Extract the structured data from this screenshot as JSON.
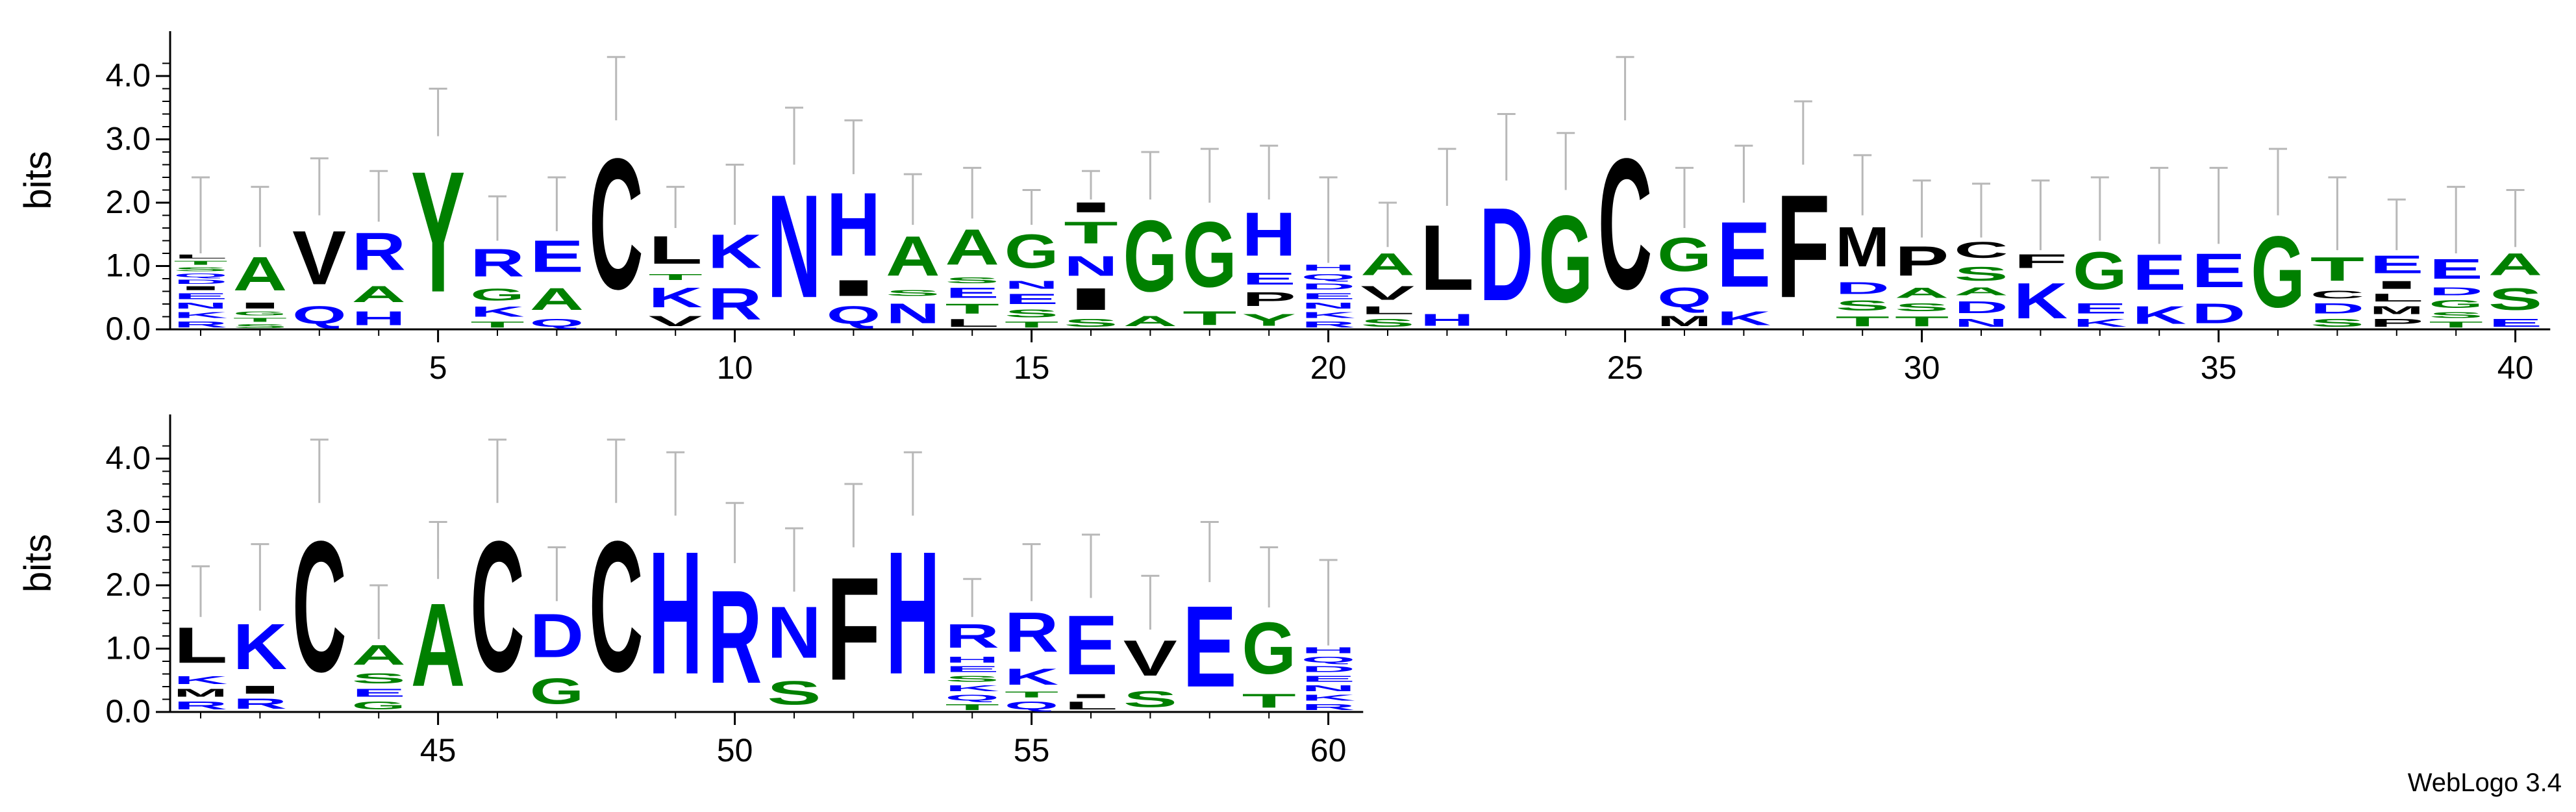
{
  "chart_data": {
    "type": "sequence-logo",
    "ylabel": "bits",
    "ylim": [
      0,
      4.32
    ],
    "yticks": [
      "0.0",
      "1.0",
      "2.0",
      "3.0",
      "4.0"
    ],
    "credit": "WebLogo 3.4",
    "colors": {
      "B": "#0000ff",
      "G": "#008000",
      "K": "#000000"
    },
    "color_classes": {
      "B": "DEHKNQR",
      "G": "AGSTY",
      "K": "CFILMPVW"
    },
    "panels": [
      {
        "start": 1,
        "end": 40,
        "xticks": [
          5,
          10,
          15,
          20,
          25,
          30,
          35,
          40
        ]
      },
      {
        "start": 41,
        "end": 60,
        "xticks": [
          45,
          50,
          55,
          60
        ]
      }
    ],
    "positions": [
      {
        "pos": 1,
        "err": 2.4,
        "stack": [
          [
            "R",
            0.15
          ],
          [
            "K",
            0.15
          ],
          [
            "N",
            0.15
          ],
          [
            "E",
            0.15
          ],
          [
            "I",
            0.1
          ],
          [
            "D",
            0.1
          ],
          [
            "Q",
            0.1
          ],
          [
            "S",
            0.1
          ],
          [
            "T",
            0.1
          ],
          [
            "L",
            0.1
          ]
        ]
      },
      {
        "pos": 2,
        "err": 2.25,
        "stack": [
          [
            "S",
            0.1
          ],
          [
            "T",
            0.1
          ],
          [
            "G",
            0.1
          ],
          [
            "I",
            0.15
          ],
          [
            "A",
            0.85
          ]
        ]
      },
      {
        "pos": 3,
        "err": 2.7,
        "stack": [
          [
            "Q",
            0.45
          ],
          [
            "V",
            1.35
          ]
        ]
      },
      {
        "pos": 4,
        "err": 2.5,
        "stack": [
          [
            "H",
            0.35
          ],
          [
            "A",
            0.4
          ],
          [
            "R",
            0.95
          ]
        ]
      },
      {
        "pos": 5,
        "err": 3.8,
        "stack": [
          [
            "Y",
            3.05
          ]
        ]
      },
      {
        "pos": 6,
        "err": 2.1,
        "stack": [
          [
            "T",
            0.15
          ],
          [
            "K",
            0.25
          ],
          [
            "G",
            0.3
          ],
          [
            "R",
            0.7
          ]
        ]
      },
      {
        "pos": 7,
        "err": 2.4,
        "stack": [
          [
            "Q",
            0.2
          ],
          [
            "A",
            0.55
          ],
          [
            "E",
            0.8
          ]
        ]
      },
      {
        "pos": 8,
        "err": 4.3,
        "stack": [
          [
            "C",
            3.3
          ]
        ]
      },
      {
        "pos": 9,
        "err": 2.25,
        "stack": [
          [
            "V",
            0.25
          ],
          [
            "K",
            0.5
          ],
          [
            "T",
            0.15
          ],
          [
            "L",
            0.7
          ]
        ]
      },
      {
        "pos": 10,
        "err": 2.6,
        "stack": [
          [
            "R",
            0.8
          ],
          [
            "K",
            0.85
          ]
        ]
      },
      {
        "pos": 11,
        "err": 3.5,
        "stack": [
          [
            "N",
            2.6
          ]
        ]
      },
      {
        "pos": 12,
        "err": 3.3,
        "stack": [
          [
            "Q",
            0.45
          ],
          [
            "I",
            0.4
          ],
          [
            "H",
            1.6
          ]
        ]
      },
      {
        "pos": 13,
        "err": 2.45,
        "stack": [
          [
            "N",
            0.5
          ],
          [
            "S",
            0.15
          ],
          [
            "A",
            1.0
          ]
        ]
      },
      {
        "pos": 14,
        "err": 2.55,
        "stack": [
          [
            "L",
            0.2
          ],
          [
            "T",
            0.25
          ],
          [
            "E",
            0.25
          ],
          [
            "S",
            0.15
          ],
          [
            "A",
            0.9
          ]
        ]
      },
      {
        "pos": 15,
        "err": 2.2,
        "stack": [
          [
            "T",
            0.15
          ],
          [
            "S",
            0.2
          ],
          [
            "E",
            0.25
          ],
          [
            "N",
            0.2
          ],
          [
            "G",
            0.85
          ]
        ]
      },
      {
        "pos": 16,
        "err": 2.5,
        "stack": [
          [
            "S",
            0.2
          ],
          [
            "I",
            0.55
          ],
          [
            "N",
            0.5
          ],
          [
            "T",
            0.55
          ],
          [
            "I",
            0.25
          ]
        ]
      },
      {
        "pos": 17,
        "err": 2.8,
        "stack": [
          [
            "A",
            0.25
          ],
          [
            "G",
            1.8
          ]
        ]
      },
      {
        "pos": 18,
        "err": 2.85,
        "stack": [
          [
            "T",
            0.35
          ],
          [
            "G",
            1.65
          ]
        ]
      },
      {
        "pos": 19,
        "err": 2.9,
        "stack": [
          [
            "Y",
            0.3
          ],
          [
            "P",
            0.35
          ],
          [
            "E",
            0.3
          ],
          [
            "H",
            1.1
          ]
        ]
      },
      {
        "pos": 20,
        "err": 2.4,
        "stack": [
          [
            "R",
            0.15
          ],
          [
            "K",
            0.15
          ],
          [
            "N",
            0.15
          ],
          [
            "E",
            0.15
          ],
          [
            "D",
            0.15
          ],
          [
            "Q",
            0.15
          ],
          [
            "H",
            0.15
          ]
        ]
      },
      {
        "pos": 21,
        "err": 2.0,
        "stack": [
          [
            "S",
            0.2
          ],
          [
            "L",
            0.2
          ],
          [
            "V",
            0.35
          ],
          [
            "A",
            0.55
          ]
        ]
      },
      {
        "pos": 22,
        "err": 2.85,
        "stack": [
          [
            "H",
            0.3
          ],
          [
            "L",
            1.65
          ]
        ]
      },
      {
        "pos": 23,
        "err": 3.4,
        "stack": [
          [
            "D",
            2.35
          ]
        ]
      },
      {
        "pos": 24,
        "err": 3.1,
        "stack": [
          [
            "G",
            2.2
          ]
        ]
      },
      {
        "pos": 25,
        "err": 4.3,
        "stack": [
          [
            "C",
            3.3
          ]
        ]
      },
      {
        "pos": 26,
        "err": 2.55,
        "stack": [
          [
            "M",
            0.25
          ],
          [
            "Q",
            0.5
          ],
          [
            "G",
            0.85
          ]
        ]
      },
      {
        "pos": 27,
        "err": 2.9,
        "stack": [
          [
            "K",
            0.35
          ],
          [
            "E",
            1.65
          ]
        ]
      },
      {
        "pos": 28,
        "err": 3.6,
        "stack": [
          [
            "F",
            2.6
          ]
        ]
      },
      {
        "pos": 29,
        "err": 2.75,
        "stack": [
          [
            "T",
            0.25
          ],
          [
            "S",
            0.25
          ],
          [
            "D",
            0.3
          ],
          [
            "M",
            1.0
          ]
        ]
      },
      {
        "pos": 30,
        "err": 2.35,
        "stack": [
          [
            "T",
            0.25
          ],
          [
            "S",
            0.2
          ],
          [
            "A",
            0.25
          ],
          [
            "P",
            0.75
          ]
        ]
      },
      {
        "pos": 31,
        "err": 2.3,
        "stack": [
          [
            "N",
            0.2
          ],
          [
            "D",
            0.3
          ],
          [
            "A",
            0.2
          ],
          [
            "S",
            0.35
          ],
          [
            "C",
            0.4
          ]
        ]
      },
      {
        "pos": 32,
        "err": 2.35,
        "stack": [
          [
            "K",
            0.9
          ],
          [
            "F",
            0.35
          ]
        ]
      },
      {
        "pos": 33,
        "err": 2.4,
        "stack": [
          [
            "K",
            0.2
          ],
          [
            "E",
            0.25
          ],
          [
            "G",
            0.95
          ]
        ]
      },
      {
        "pos": 34,
        "err": 2.55,
        "stack": [
          [
            "K",
            0.45
          ],
          [
            "E",
            0.9
          ]
        ]
      },
      {
        "pos": 35,
        "err": 2.55,
        "stack": [
          [
            "D",
            0.5
          ],
          [
            "E",
            0.85
          ]
        ]
      },
      {
        "pos": 36,
        "err": 2.85,
        "stack": [
          [
            "G",
            1.8
          ]
        ]
      },
      {
        "pos": 37,
        "err": 2.4,
        "stack": [
          [
            "S",
            0.2
          ],
          [
            "D",
            0.25
          ],
          [
            "C",
            0.2
          ],
          [
            "T",
            0.6
          ]
        ]
      },
      {
        "pos": 38,
        "err": 2.05,
        "stack": [
          [
            "P",
            0.2
          ],
          [
            "M",
            0.2
          ],
          [
            "L",
            0.2
          ],
          [
            "I",
            0.2
          ],
          [
            "E",
            0.45
          ]
        ]
      },
      {
        "pos": 39,
        "err": 2.25,
        "stack": [
          [
            "T",
            0.15
          ],
          [
            "S",
            0.15
          ],
          [
            "G",
            0.2
          ],
          [
            "D",
            0.2
          ],
          [
            "E",
            0.5
          ]
        ]
      },
      {
        "pos": 40,
        "err": 2.2,
        "stack": [
          [
            "E",
            0.2
          ],
          [
            "S",
            0.55
          ],
          [
            "A",
            0.55
          ]
        ]
      },
      {
        "pos": 41,
        "err": 2.3,
        "stack": [
          [
            "R",
            0.2
          ],
          [
            "M",
            0.2
          ],
          [
            "K",
            0.2
          ],
          [
            "L",
            0.9
          ]
        ]
      },
      {
        "pos": 42,
        "err": 2.65,
        "stack": [
          [
            "R",
            0.25
          ],
          [
            "I",
            0.2
          ],
          [
            "K",
            1.15
          ]
        ]
      },
      {
        "pos": 43,
        "err": 4.3,
        "stack": [
          [
            "C",
            3.3
          ]
        ]
      },
      {
        "pos": 44,
        "err": 2.0,
        "stack": [
          [
            "G",
            0.2
          ],
          [
            "E",
            0.2
          ],
          [
            "S",
            0.25
          ],
          [
            "A",
            0.5
          ]
        ]
      },
      {
        "pos": 45,
        "err": 3.0,
        "stack": [
          [
            "A",
            2.1
          ]
        ]
      },
      {
        "pos": 46,
        "err": 4.3,
        "stack": [
          [
            "C",
            3.3
          ]
        ]
      },
      {
        "pos": 47,
        "err": 2.6,
        "stack": [
          [
            "G",
            0.65
          ],
          [
            "D",
            1.1
          ]
        ]
      },
      {
        "pos": 48,
        "err": 4.3,
        "stack": [
          [
            "C",
            3.3
          ]
        ]
      },
      {
        "pos": 49,
        "err": 4.1,
        "stack": [
          [
            "H",
            3.1
          ]
        ]
      },
      {
        "pos": 50,
        "err": 3.3,
        "stack": [
          [
            "R",
            2.35
          ]
        ]
      },
      {
        "pos": 51,
        "err": 2.9,
        "stack": [
          [
            "S",
            0.6
          ],
          [
            "N",
            1.3
          ]
        ]
      },
      {
        "pos": 52,
        "err": 3.6,
        "stack": [
          [
            "F",
            2.6
          ]
        ]
      },
      {
        "pos": 53,
        "err": 4.1,
        "stack": [
          [
            "H",
            3.1
          ]
        ]
      },
      {
        "pos": 54,
        "err": 2.1,
        "stack": [
          [
            "T",
            0.15
          ],
          [
            "Q",
            0.15
          ],
          [
            "K",
            0.15
          ],
          [
            "S",
            0.15
          ],
          [
            "E",
            0.15
          ],
          [
            "H",
            0.15
          ],
          [
            "R",
            0.6
          ]
        ]
      },
      {
        "pos": 55,
        "err": 2.65,
        "stack": [
          [
            "Q",
            0.2
          ],
          [
            "T",
            0.15
          ],
          [
            "K",
            0.4
          ],
          [
            "R",
            1.0
          ]
        ]
      },
      {
        "pos": 56,
        "err": 2.8,
        "stack": [
          [
            "L",
            0.2
          ],
          [
            "I",
            0.1
          ],
          [
            "E",
            1.5
          ]
        ]
      },
      {
        "pos": 57,
        "err": 2.15,
        "stack": [
          [
            "S",
            0.4
          ],
          [
            "V",
            0.9
          ]
        ]
      },
      {
        "pos": 58,
        "err": 3.0,
        "stack": [
          [
            "E",
            2.05
          ]
        ]
      },
      {
        "pos": 59,
        "err": 2.6,
        "stack": [
          [
            "T",
            0.35
          ],
          [
            "G",
            1.3
          ]
        ]
      },
      {
        "pos": 60,
        "err": 2.4,
        "stack": [
          [
            "R",
            0.15
          ],
          [
            "K",
            0.15
          ],
          [
            "N",
            0.15
          ],
          [
            "E",
            0.15
          ],
          [
            "D",
            0.15
          ],
          [
            "Q",
            0.15
          ],
          [
            "H",
            0.15
          ]
        ]
      }
    ]
  }
}
